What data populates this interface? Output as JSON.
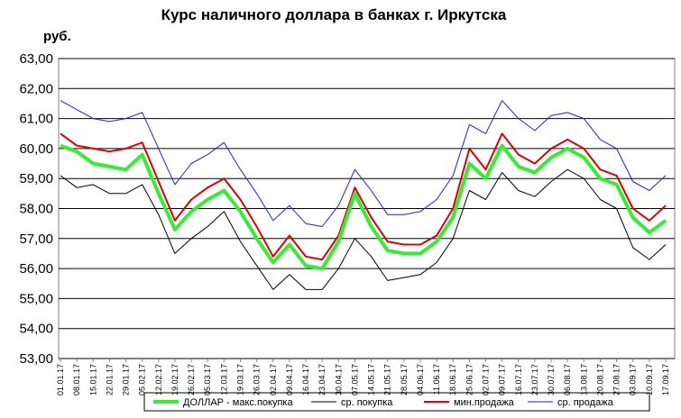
{
  "chart_data": {
    "type": "line",
    "title": "Курс наличного доллара  в банках г. Иркутска",
    "y_label": "руб.",
    "categories": [
      "01.01.17",
      "08.01.17",
      "15.01.17",
      "22.01.17",
      "29.01.17",
      "05.02.17",
      "12.02.17",
      "19.02.17",
      "26.02.17",
      "05.03.17",
      "12.03.17",
      "19.03.17",
      "26.03.17",
      "02.04.17",
      "09.04.17",
      "16.04.17",
      "23.04.17",
      "30.04.17",
      "07.05.17",
      "14.05.17",
      "21.05.17",
      "28.05.17",
      "04.06.17",
      "11.06.17",
      "18.06.17",
      "25.06.17",
      "02.07.17",
      "09.07.17",
      "16.07.17",
      "23.07.17",
      "30.07.17",
      "06.08.17",
      "13.08.17",
      "20.08.17",
      "27.08.17",
      "03.09.17",
      "10.09.17",
      "17.09.17"
    ],
    "series": [
      {
        "name": "ДОЛЛАР - макс.покупка",
        "color": "#33ee33",
        "width": 4,
        "values": [
          60.1,
          59.9,
          59.5,
          59.4,
          59.3,
          59.8,
          58.5,
          57.3,
          57.9,
          58.3,
          58.6,
          57.9,
          57.0,
          56.2,
          56.8,
          56.1,
          56.0,
          56.9,
          58.5,
          57.4,
          56.6,
          56.5,
          56.5,
          56.9,
          57.7,
          59.5,
          59.0,
          60.1,
          59.4,
          59.2,
          59.7,
          60.0,
          59.7,
          59.0,
          58.8,
          57.7,
          57.2,
          57.6
        ]
      },
      {
        "name": "ср. покупка",
        "color": "#000000",
        "width": 1,
        "values": [
          59.1,
          58.7,
          58.8,
          58.5,
          58.5,
          58.8,
          57.8,
          56.5,
          57.0,
          57.4,
          57.9,
          56.9,
          56.1,
          55.3,
          55.8,
          55.3,
          55.3,
          56.0,
          57.0,
          56.4,
          55.6,
          55.7,
          55.8,
          56.2,
          57.0,
          58.6,
          58.3,
          59.2,
          58.6,
          58.4,
          58.9,
          59.3,
          59.0,
          58.3,
          58.0,
          56.7,
          56.3,
          56.8
        ]
      },
      {
        "name": "мин.продажа",
        "color": "#dd0000",
        "width": 2,
        "values": [
          60.5,
          60.1,
          60.0,
          59.9,
          60.0,
          60.2,
          58.9,
          57.6,
          58.3,
          58.7,
          59.0,
          58.3,
          57.4,
          56.4,
          57.1,
          56.4,
          56.3,
          57.1,
          58.7,
          57.7,
          56.9,
          56.8,
          56.8,
          57.1,
          58.0,
          60.0,
          59.3,
          60.5,
          59.8,
          59.5,
          60.0,
          60.3,
          60.0,
          59.3,
          59.1,
          58.0,
          57.6,
          58.1
        ]
      },
      {
        "name": "ср. продажа",
        "color": "#2222cc",
        "width": 1,
        "values": [
          61.6,
          61.3,
          61.0,
          60.9,
          61.0,
          61.2,
          60.0,
          58.8,
          59.5,
          59.8,
          60.2,
          59.3,
          58.5,
          57.6,
          58.1,
          57.5,
          57.4,
          58.1,
          59.3,
          58.6,
          57.8,
          57.8,
          57.9,
          58.3,
          59.1,
          60.8,
          60.5,
          61.6,
          61.0,
          60.6,
          61.1,
          61.2,
          61.0,
          60.3,
          60.0,
          58.9,
          58.6,
          59.1
        ]
      }
    ],
    "ylim": [
      53,
      63
    ],
    "yticks": [
      {
        "value": 53,
        "label": "53,00"
      },
      {
        "value": 54,
        "label": "54,00"
      },
      {
        "value": 55,
        "label": "55,00"
      },
      {
        "value": 56,
        "label": "56,00"
      },
      {
        "value": 57,
        "label": "57,00"
      },
      {
        "value": 58,
        "label": "58,00"
      },
      {
        "value": 59,
        "label": "59,00"
      },
      {
        "value": 60,
        "label": "60,00"
      },
      {
        "value": 61,
        "label": "61,00"
      },
      {
        "value": 62,
        "label": "62,00"
      },
      {
        "value": 63,
        "label": "63,00"
      }
    ],
    "grid": true,
    "legend": "bottom"
  }
}
